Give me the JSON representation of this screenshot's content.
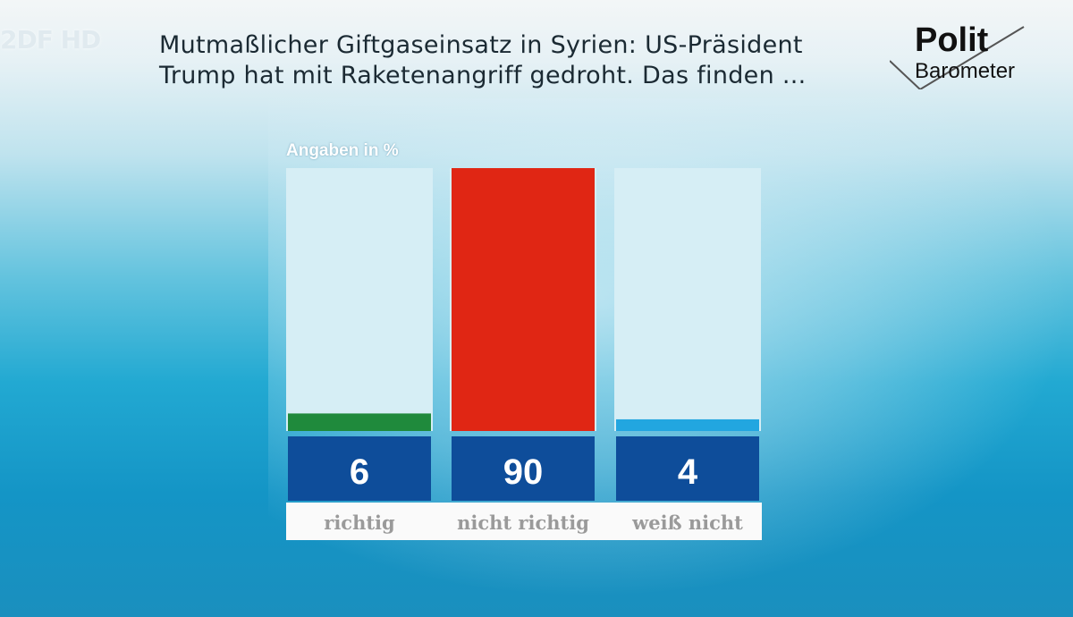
{
  "channel": {
    "logo_text": "2DF HD"
  },
  "header": {
    "title_line1": "Mutmaßlicher Giftgaseinsatz in Syrien: US-Präsident",
    "title_line2": "Trump hat mit Raketenangriff gedroht. Das finden ..."
  },
  "brand": {
    "line1": "Polit",
    "line2": "Barometer"
  },
  "colors": {
    "track": "#d6eef5",
    "value_box": "#0e4d9a",
    "label_strip": "#fafafa"
  },
  "chart_data": {
    "type": "bar",
    "unit_label": "Angaben in %",
    "categories": [
      "richtig",
      "nicht richtig",
      "weiß nicht"
    ],
    "values": [
      6,
      90,
      4
    ],
    "colors": [
      "#1f8a3c",
      "#e02614",
      "#22a6e0"
    ],
    "ylim": [
      0,
      90
    ],
    "grid": false
  }
}
